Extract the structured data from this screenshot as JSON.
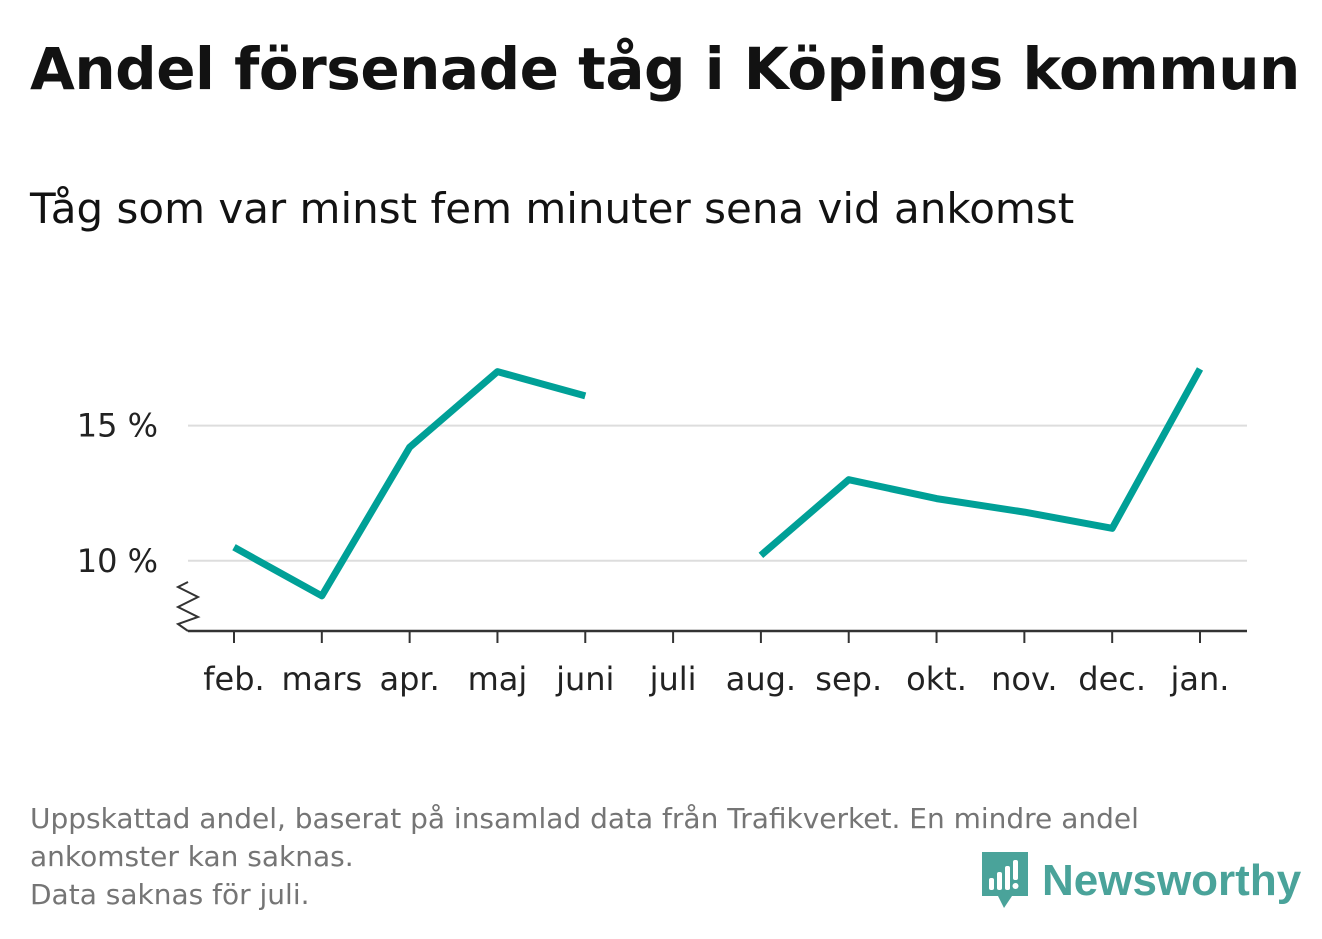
{
  "title": "Andel försenade tåg i Köpings kommun",
  "subtitle": "Tåg som var minst fem minuter sena vid ankomst",
  "footer": {
    "line1": "Uppskattad andel, baserat på insamlad data från Trafikverket. En mindre andel",
    "line2": "ankomster kan saknas.",
    "line3": "Data saknas för juli."
  },
  "logo": {
    "text": "Newsworthy",
    "icon": "newsworthy-logo-icon",
    "color": "#4aa39a"
  },
  "colors": {
    "line": "#00a097",
    "grid": "#dddddd",
    "axis": "#333333"
  },
  "chart_data": {
    "type": "line",
    "categories": [
      "feb.",
      "mars",
      "apr.",
      "maj",
      "juni",
      "juli",
      "aug.",
      "sep.",
      "okt.",
      "nov.",
      "dec.",
      "jan."
    ],
    "series": [
      {
        "values": [
          10.5,
          8.7,
          14.2,
          17.0,
          16.1,
          null,
          10.2,
          13.0,
          12.3,
          11.8,
          11.2,
          17.1
        ]
      }
    ],
    "yticks": [
      10,
      15
    ],
    "ytick_labels": [
      "10 %",
      "15 %"
    ],
    "ylim": [
      7.4,
      17.8
    ],
    "y_axis_break": true,
    "grid": "horizontal",
    "xlabel": "",
    "ylabel": ""
  }
}
